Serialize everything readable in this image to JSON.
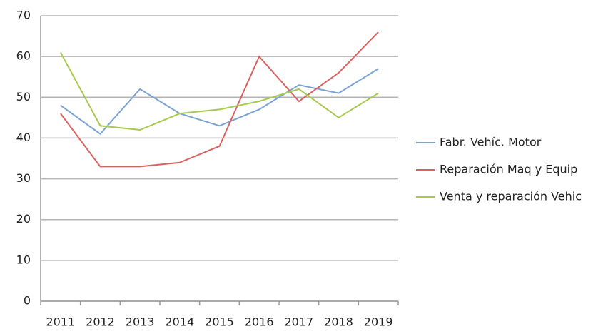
{
  "chart_data": {
    "type": "line",
    "categories": [
      "2011",
      "2012",
      "2013",
      "2014",
      "2015",
      "2016",
      "2017",
      "2018",
      "2019"
    ],
    "series": [
      {
        "name": "Fabr. Vehíc. Motor",
        "color": "#7ba3d6",
        "values": [
          48,
          41,
          52,
          46,
          43,
          47,
          53,
          51,
          57
        ]
      },
      {
        "name": "Reparación Maq y Equip",
        "color": "#d9625f",
        "values": [
          46,
          33,
          33,
          34,
          38,
          60,
          49,
          56,
          66
        ]
      },
      {
        "name": "Venta y reparación Vehic",
        "color": "#a7c94f",
        "values": [
          61,
          43,
          42,
          46,
          47,
          49,
          52,
          45,
          51
        ]
      }
    ],
    "ylim": [
      0,
      70
    ],
    "yticks": [
      0,
      10,
      20,
      30,
      40,
      50,
      60,
      70
    ],
    "grid": true,
    "legend": "right"
  }
}
